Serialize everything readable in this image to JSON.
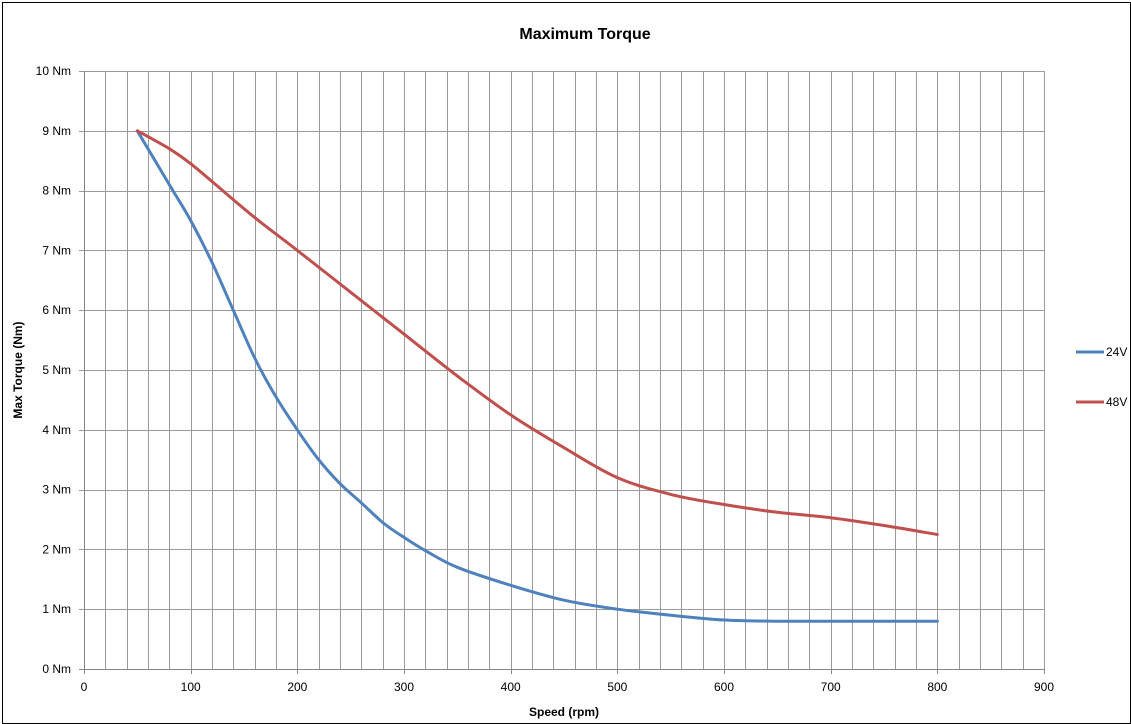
{
  "chart_data": {
    "type": "line",
    "title": "Maximum Torque",
    "xlabel": "Speed (rpm)",
    "ylabel": "Max Torque (Nm)",
    "xlim": [
      0,
      900
    ],
    "ylim": [
      0,
      10
    ],
    "x_ticks": [
      "0",
      "100",
      "200",
      "300",
      "400",
      "500",
      "600",
      "700",
      "800",
      "900"
    ],
    "x_tick_values": [
      0,
      100,
      200,
      300,
      400,
      500,
      600,
      700,
      800,
      900
    ],
    "y_ticks": [
      "0 Nm",
      "1 Nm",
      "2 Nm",
      "3 Nm",
      "4 Nm",
      "5 Nm",
      "6 Nm",
      "7 Nm",
      "8 Nm",
      "9 Nm",
      "10 Nm"
    ],
    "y_tick_values": [
      0,
      1,
      2,
      3,
      4,
      5,
      6,
      7,
      8,
      9,
      10
    ],
    "grid": true,
    "minor_x_grid_step": 20,
    "legend_position": "right",
    "series": [
      {
        "name": "24V",
        "color": "#4f81bd",
        "x": [
          50,
          80,
          100,
          120,
          140,
          160,
          180,
          200,
          220,
          240,
          260,
          280,
          300,
          320,
          350,
          400,
          450,
          500,
          550,
          600,
          650,
          700,
          750,
          800
        ],
        "y": [
          9.0,
          8.1,
          7.5,
          6.8,
          6.0,
          5.2,
          4.55,
          4.0,
          3.5,
          3.1,
          2.78,
          2.45,
          2.2,
          1.98,
          1.7,
          1.4,
          1.15,
          1.0,
          0.9,
          0.82,
          0.8,
          0.8,
          0.8,
          0.8
        ]
      },
      {
        "name": "48V",
        "color": "#c0504d",
        "x": [
          50,
          80,
          100,
          130,
          160,
          200,
          250,
          300,
          350,
          400,
          450,
          500,
          550,
          600,
          650,
          700,
          750,
          800
        ],
        "y": [
          9.0,
          8.7,
          8.45,
          8.0,
          7.55,
          7.0,
          6.3,
          5.6,
          4.9,
          4.25,
          3.7,
          3.2,
          2.92,
          2.75,
          2.62,
          2.53,
          2.4,
          2.25
        ]
      }
    ]
  }
}
